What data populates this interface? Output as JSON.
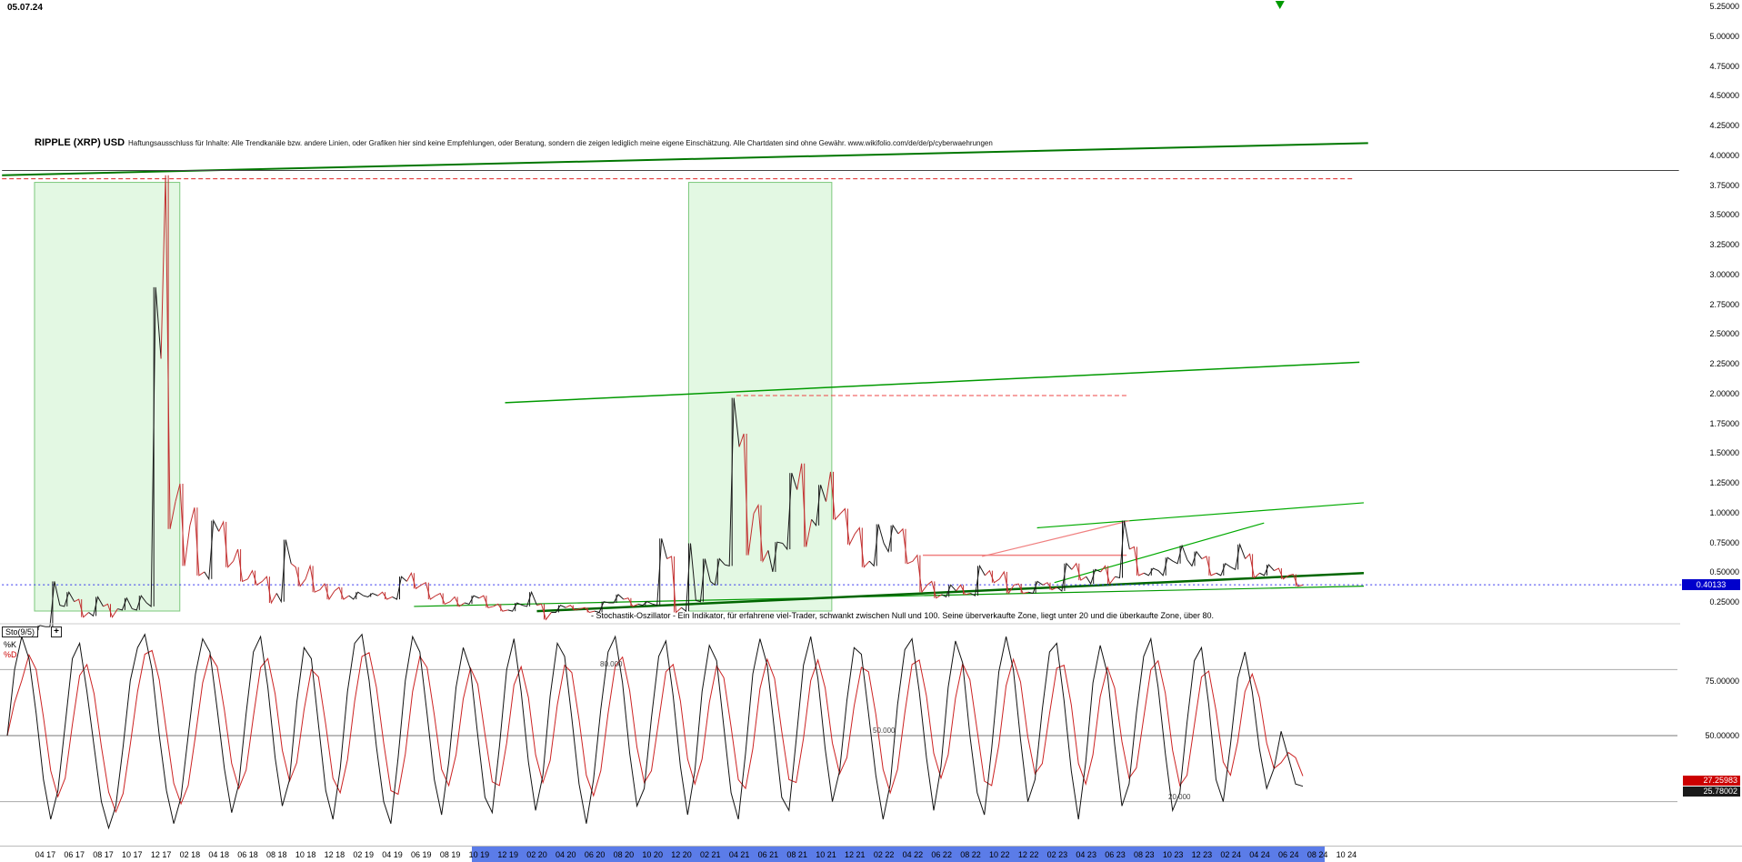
{
  "meta": {
    "date_label": "05.07.24"
  },
  "header": {
    "title": "RIPPLE (XRP) USD",
    "disclaimer": "Haftungsausschluss für Inhalte: Alle Trendkanäle bzw. andere Linien, oder Grafiken hier sind keine Empfehlungen, oder Beratung, sondern die zeigen lediglich meine eigene Einschätzung. Alle Chartdaten sind ohne Gewähr. www.wikifolio.com/de/de/p/cyberwaehrungen"
  },
  "price_axis": {
    "labels": [
      "5.25000",
      "5.00000",
      "4.75000",
      "4.50000",
      "4.25000",
      "4.00000",
      "3.75000",
      "3.50000",
      "3.25000",
      "3.00000",
      "2.75000",
      "2.50000",
      "2.25000",
      "2.00000",
      "1.75000",
      "1.50000",
      "1.25000",
      "1.00000",
      "0.75000",
      "0.50000",
      "0.25000"
    ],
    "current": "0.40133",
    "current_bg": "#0000cc"
  },
  "x_axis": {
    "labels": [
      "04 17",
      "06 17",
      "08 17",
      "10 17",
      "12 17",
      "02 18",
      "04 18",
      "06 18",
      "08 18",
      "10 18",
      "12 18",
      "02 19",
      "04 19",
      "06 19",
      "08 19",
      "10 19",
      "12 19",
      "02 20",
      "04 20",
      "06 20",
      "08 20",
      "10 20",
      "12 20",
      "02 21",
      "04 21",
      "06 21",
      "08 21",
      "10 21",
      "12 21",
      "02 22",
      "04 22",
      "06 22",
      "08 22",
      "10 22",
      "12 22",
      "02 23",
      "04 23",
      "06 23",
      "08 23",
      "10 23",
      "12 23",
      "02 24",
      "04 24",
      "06 24",
      "08 24",
      "10 24"
    ],
    "scroll_from": "10 19",
    "scroll_to": "08 24",
    "scroll_color": "#5b7ce8"
  },
  "oscillator_panel": {
    "name_label": "Sto(9/5)",
    "plus_label": "+",
    "k_label": "%K",
    "d_label": "%D",
    "k_value": "27.25983",
    "d_value": "25.78002",
    "k_value_bg": "#cc0000",
    "d_value_bg": "#1a1a1a",
    "axis_labels": [
      "75.00000",
      "50.00000",
      "25.00000"
    ],
    "zone_labels": [
      {
        "text": "80.000",
        "level": 80
      },
      {
        "text": "50.000",
        "level": 50
      },
      {
        "text": "20.000",
        "level": 20
      }
    ],
    "note": "- Stochastik-Oszillator - Ein Indikator, für erfahrene viel-Trader, schwankt zwischen Null und 100. Seine überverkaufte Zone, liegt unter 20 und die überkaufte Zone, über 80."
  },
  "chart_data": {
    "type": "candlestick",
    "title": "RIPPLE (XRP) USD",
    "x_start": "2017-03",
    "x_freq": "monthly",
    "x_end_label": "10 24",
    "ylim": [
      0.19,
      5.3
    ],
    "grid": false,
    "current_price": 0.40133,
    "up_color": "#1a1a1a",
    "down_color": "#c22f2f",
    "close": [
      0.02,
      0.05,
      0.23,
      0.26,
      0.17,
      0.22,
      0.2,
      0.2,
      0.25,
      2.3,
      1.1,
      0.9,
      0.51,
      0.85,
      0.6,
      0.45,
      0.43,
      0.33,
      0.58,
      0.45,
      0.36,
      0.35,
      0.31,
      0.31,
      0.31,
      0.3,
      0.43,
      0.4,
      0.31,
      0.26,
      0.25,
      0.29,
      0.22,
      0.19,
      0.23,
      0.23,
      0.17,
      0.21,
      0.2,
      0.18,
      0.25,
      0.28,
      0.24,
      0.24,
      0.62,
      0.21,
      0.27,
      0.43,
      0.57,
      1.56,
      1.0,
      0.69,
      0.75,
      1.2,
      0.95,
      1.1,
      1.0,
      0.83,
      0.6,
      0.75,
      0.83,
      0.6,
      0.4,
      0.32,
      0.35,
      0.33,
      0.48,
      0.45,
      0.4,
      0.34,
      0.4,
      0.38,
      0.53,
      0.47,
      0.51,
      0.47,
      0.7,
      0.5,
      0.52,
      0.6,
      0.61,
      0.62,
      0.5,
      0.55,
      0.62,
      0.5,
      0.52,
      0.48,
      0.4
    ],
    "high": [
      0.03,
      0.06,
      0.43,
      0.34,
      0.28,
      0.3,
      0.24,
      0.29,
      0.31,
      2.9,
      3.84,
      1.25,
      1.05,
      0.94,
      0.93,
      0.7,
      0.52,
      0.47,
      0.78,
      0.55,
      0.56,
      0.41,
      0.38,
      0.34,
      0.33,
      0.34,
      0.47,
      0.5,
      0.42,
      0.33,
      0.3,
      0.31,
      0.31,
      0.24,
      0.25,
      0.34,
      0.24,
      0.23,
      0.23,
      0.21,
      0.26,
      0.32,
      0.29,
      0.26,
      0.79,
      0.64,
      0.75,
      0.62,
      0.62,
      1.97,
      1.67,
      1.07,
      0.76,
      1.34,
      1.42,
      1.24,
      1.35,
      1.04,
      0.88,
      0.91,
      0.9,
      0.87,
      0.65,
      0.43,
      0.4,
      0.4,
      0.56,
      0.52,
      0.51,
      0.41,
      0.43,
      0.42,
      0.58,
      0.58,
      0.53,
      0.56,
      0.94,
      0.72,
      0.54,
      0.63,
      0.73,
      0.68,
      0.64,
      0.58,
      0.74,
      0.66,
      0.57,
      0.54,
      0.49
    ],
    "low": [
      0.01,
      0.02,
      0.05,
      0.22,
      0.13,
      0.14,
      0.13,
      0.19,
      0.19,
      0.22,
      0.87,
      0.56,
      0.48,
      0.45,
      0.55,
      0.43,
      0.4,
      0.25,
      0.26,
      0.39,
      0.34,
      0.28,
      0.28,
      0.28,
      0.3,
      0.28,
      0.28,
      0.37,
      0.28,
      0.24,
      0.22,
      0.24,
      0.21,
      0.18,
      0.18,
      0.22,
      0.11,
      0.17,
      0.19,
      0.17,
      0.17,
      0.25,
      0.22,
      0.23,
      0.23,
      0.17,
      0.18,
      0.26,
      0.4,
      0.56,
      0.65,
      0.6,
      0.51,
      0.7,
      0.72,
      0.9,
      0.95,
      0.74,
      0.55,
      0.56,
      0.68,
      0.58,
      0.34,
      0.29,
      0.3,
      0.32,
      0.31,
      0.42,
      0.33,
      0.33,
      0.33,
      0.36,
      0.35,
      0.44,
      0.41,
      0.41,
      0.46,
      0.48,
      0.48,
      0.48,
      0.58,
      0.56,
      0.48,
      0.48,
      0.53,
      0.46,
      0.48,
      0.45,
      0.39
    ],
    "bands": [
      {
        "from_m": 0.25,
        "to_m": 10.3,
        "top_price": 3.78,
        "fill": "#dcf6dc",
        "edge": "#7cc87c"
      },
      {
        "from_m": 45.5,
        "to_m": 55.4,
        "top_price": 3.78,
        "fill": "#dcf6dc",
        "edge": "#7cc87c"
      }
    ],
    "lines": [
      {
        "name": "upper-trendline-green",
        "m1": -2,
        "p1": 3.84,
        "m2": 92.5,
        "p2": 4.11,
        "color": "#007700",
        "w": 2
      },
      {
        "name": "ath-level-black",
        "m1": -2,
        "p1": 3.88,
        "m2": 114,
        "p2": 3.88,
        "color": "#444444",
        "w": 1
      },
      {
        "name": "ath-level-red-dashed",
        "m1": -2,
        "p1": 3.81,
        "m2": 91.5,
        "p2": 3.81,
        "color": "#dd2222",
        "w": 1,
        "dash": "5,3"
      },
      {
        "name": "mid-trendline-green",
        "m1": 32.8,
        "p1": 1.93,
        "m2": 91.9,
        "p2": 2.27,
        "color": "#009900",
        "w": 1.5
      },
      {
        "name": "high-2021-red-dashed",
        "m1": 48.8,
        "p1": 1.99,
        "m2": 75.8,
        "p2": 1.99,
        "color": "#ee4444",
        "w": 1,
        "dash": "5,3"
      },
      {
        "name": "long-support-thin-green",
        "m1": 26.5,
        "p1": 0.22,
        "m2": 92.2,
        "p2": 0.39,
        "color": "#009900",
        "w": 1.2
      },
      {
        "name": "long-support-thick-green",
        "m1": 35,
        "p1": 0.18,
        "m2": 92.2,
        "p2": 0.5,
        "color": "#006600",
        "w": 2.5
      },
      {
        "name": "channel-upper-green",
        "m1": 69.6,
        "p1": 0.88,
        "m2": 92.2,
        "p2": 1.09,
        "color": "#00aa00",
        "w": 1.2
      },
      {
        "name": "channel-lower-green",
        "m1": 70.8,
        "p1": 0.42,
        "m2": 85.3,
        "p2": 0.92,
        "color": "#00aa00",
        "w": 1.2
      },
      {
        "name": "resistance-pink",
        "m1": 61.7,
        "p1": 0.65,
        "m2": 75.8,
        "p2": 0.65,
        "color": "#f08080",
        "w": 1.5
      },
      {
        "name": "rising-pink",
        "m1": 65.8,
        "p1": 0.64,
        "m2": 76,
        "p2": 0.94,
        "color": "#f08080",
        "w": 1.2
      },
      {
        "name": "current-price-dotted-blue",
        "m1": -2,
        "p1": 0.40133,
        "m2": 114.2,
        "p2": 0.40133,
        "color": "#3333ee",
        "w": 1,
        "dash": "2,3"
      }
    ],
    "marker": {
      "m": 86.4,
      "symbol": "triangle-down",
      "color": "#009900"
    },
    "stochastic": {
      "period": "9/5",
      "zones": [
        20,
        50,
        80
      ],
      "k_color": "#111111",
      "d_color": "#cc2222",
      "k_last": 27.25983,
      "d_last": 25.78002,
      "k": [
        50,
        80,
        95,
        85,
        60,
        30,
        12,
        25,
        55,
        85,
        92,
        70,
        45,
        20,
        8,
        18,
        45,
        75,
        90,
        96,
        80,
        50,
        25,
        10,
        22,
        50,
        78,
        94,
        88,
        62,
        35,
        15,
        28,
        60,
        88,
        95,
        72,
        40,
        18,
        30,
        65,
        90,
        85,
        55,
        25,
        12,
        35,
        70,
        92,
        96,
        75,
        45,
        20,
        10,
        40,
        75,
        95,
        88,
        60,
        30,
        14,
        38,
        72,
        90,
        80,
        50,
        22,
        15,
        45,
        80,
        94,
        70,
        38,
        16,
        32,
        68,
        92,
        86,
        58,
        28,
        10,
        30,
        62,
        88,
        95,
        74,
        42,
        18,
        26,
        58,
        86,
        93,
        68,
        36,
        14,
        34,
        70,
        91,
        84,
        54,
        24,
        12,
        42,
        78,
        94,
        82,
        52,
        22,
        16,
        48,
        82,
        95,
        76,
        44,
        20,
        34,
        66,
        90,
        87,
        60,
        32,
        12,
        28,
        64,
        89,
        94,
        70,
        40,
        16,
        36,
        72,
        93,
        83,
        50,
        24,
        14,
        44,
        79,
        95,
        80,
        48,
        20,
        30,
        62,
        88,
        92,
        66,
        34,
        12,
        38,
        74,
        91,
        78,
        46,
        18,
        28,
        60,
        86,
        94,
        72,
        42,
        16,
        24,
        56,
        84,
        90,
        64,
        30,
        20,
        46,
        76,
        88,
        70,
        44,
        26,
        35,
        52,
        40,
        28,
        27
      ]
    }
  }
}
